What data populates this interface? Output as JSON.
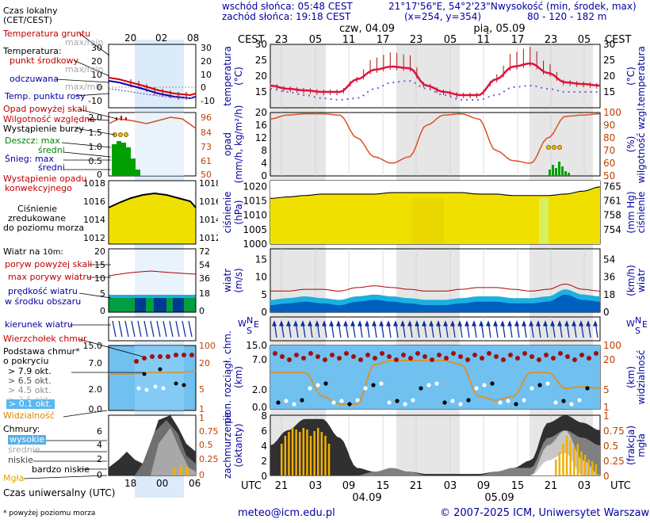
{
  "header": {
    "sunrise": "wschód słońca: 05:48 CEST",
    "sunset": "zachód słońca: 19:18 CEST",
    "coords": "21°17'56\"E, 54°2'23\"N",
    "grid": "(x=254, y=354)",
    "elevation_label": "wysokość (min, środek, max)",
    "elevation_values": "80 - 120 - 182 m"
  },
  "left": {
    "local_time": "Czas lokalny",
    "local_time_zone": "(CET/CEST)",
    "local_ticks": [
      "20",
      "02",
      "08"
    ],
    "utc_ticks": [
      "18",
      "00",
      "06"
    ],
    "utc_label": "Czas uniwersalny (UTC)",
    "footnote": "* powyżej poziomu morza",
    "temp": {
      "ground": "Temperatura gruntu",
      "ground_sub": "max/min",
      "title": "Temperatura:",
      "mid": "punkt środkowy",
      "mid_sub": "max/min",
      "felt": "odczuwana",
      "felt_sub": "max/min",
      "dew": "Temp. punktu rosy",
      "left_ticks": [
        "30",
        "20",
        "10",
        "0",
        "-10"
      ],
      "right_ticks": [
        "30",
        "20",
        "10",
        "0",
        "-10"
      ]
    },
    "precip": {
      "heavy": "Opad powyżej skali",
      "humidity": "Wilgotność względna",
      "storm": "Wystąpienie burzy",
      "rain_max": "Deszcz: max",
      "rain_mid": "średni",
      "snow_max": "Śnieg: max",
      "snow_mid": "średni",
      "conv": "Wystąpienie opadu",
      "conv2": "konwekcyjnego",
      "left_ticks": [
        "2.0",
        "1.5",
        "1.0",
        "0.5",
        "0"
      ],
      "right_ticks": [
        "96",
        "84",
        "73",
        "61",
        "50"
      ]
    },
    "pressure": {
      "l1": "Ciśnienie",
      "l2": "zredukowane",
      "l3": "do poziomu morza",
      "left_ticks": [
        "1018",
        "1016",
        "1014",
        "1012"
      ],
      "right_ticks": [
        "1018",
        "1016",
        "1014",
        "1012"
      ]
    },
    "wind": {
      "title": "Wiatr na",
      "height": "10m:",
      "gust_over": "poryw powyżej skali",
      "gust": "max porywy wiatru",
      "speed": "prędkość wiatru",
      "speed2": "w środku obszaru",
      "left_ticks": [
        "20",
        "15",
        "10",
        "5",
        "0"
      ],
      "right_ticks": [
        "72",
        "54",
        "36",
        "18",
        "0"
      ]
    },
    "direction": "kierunek wiatru",
    "cloudbase": {
      "top": "Wierzchołek chmur",
      "base": "Podstawa chmur*",
      "base2": "o pokryciu",
      "okt": [
        "> 7.9 okt.",
        "> 6.5 okt.",
        "> 4.5 okt.",
        "> 2.5 okt.",
        "> 0.1 okt."
      ],
      "vis": "Widzialność",
      "left_ticks": [
        "15.0",
        "7.0",
        "2.0",
        "0.0"
      ],
      "right_ticks": [
        "100",
        "20",
        "5",
        "1"
      ]
    },
    "clouds": {
      "title": "Chmury:",
      "high": "wysokie",
      "mid": "średnie",
      "low": "niskie",
      "vlow": "bardzo niskie",
      "fog": "Mgła",
      "left_ticks": [
        "8",
        "6",
        "4",
        "2",
        "0"
      ],
      "right_ticks": [
        "1",
        "0.75",
        "0.5",
        "0.25",
        "0"
      ]
    }
  },
  "main": {
    "cest": "CEST",
    "utc": "UTC",
    "top_hours": [
      "23",
      "05",
      "11",
      "17",
      "23",
      "05",
      "11",
      "17",
      "23",
      "05"
    ],
    "bottom_hours": [
      "21",
      "03",
      "09",
      "15",
      "21",
      "03",
      "09",
      "15",
      "21",
      "03"
    ],
    "top_days": [
      "czw, 04.09",
      "pią, 05.09"
    ],
    "bottom_days": [
      "04.09",
      "05.09"
    ],
    "temp": {
      "left_label": "temperatura",
      "left_unit": "(°C)",
      "right_unit": "(°C)",
      "right_label": "temperatura",
      "ticks": [
        "30",
        "25",
        "20",
        "15"
      ]
    },
    "precip": {
      "left_label": "opad",
      "left_unit": "(mm/h, kg/m²/h)",
      "right_unit": "(%)",
      "right_label": "wilgotność wzgl.",
      "left_ticks": [
        "20",
        "16",
        "12",
        "8",
        "4",
        "0"
      ],
      "right_ticks": [
        "100",
        "90",
        "80",
        "70",
        "60",
        "50"
      ]
    },
    "pressure": {
      "left_label": "ciśnienie",
      "left_unit": "(hPa)",
      "right_unit": "(mm Hg)",
      "right_label": "ciśnienie",
      "left_ticks": [
        "1020",
        "1015",
        "1010",
        "1005",
        "1000"
      ],
      "right_ticks": [
        "765",
        "761",
        "758",
        "754"
      ]
    },
    "wind": {
      "left_label": "wiatr",
      "left_unit": "(m/s)",
      "right_unit": "(km/h)",
      "right_label": "wiatr",
      "left_ticks": [
        "15",
        "10",
        "5",
        "0"
      ],
      "right_ticks": [
        "54",
        "36",
        "18",
        "0"
      ]
    },
    "cloud": {
      "left_label": "pion. rozciągł. chm.",
      "left_unit": "(km)",
      "right_unit": "(km)",
      "right_label": "widzialność",
      "left_ticks": [
        "15.0",
        "7.0",
        "2.0",
        "0.0"
      ],
      "right_ticks": [
        "100",
        "20",
        "5",
        "1"
      ]
    },
    "cover": {
      "left_label": "zachmurzenie",
      "left_unit": "(oktanty)",
      "right_unit": "(frakcja)",
      "right_label": "mgła",
      "left_ticks": [
        "8",
        "6",
        "4",
        "2",
        "0"
      ],
      "right_ticks": [
        "1",
        "0.75",
        "0.5",
        "0.25",
        "0"
      ]
    }
  },
  "footer": {
    "email": "meteo@icm.edu.pl",
    "copyright": "© 2007-2025 ICM, Uniwersytet Warszawski"
  },
  "chart_data": [
    {
      "type": "line",
      "ylabel": "temperatura (°C)",
      "ylim": [
        10,
        30
      ],
      "x": [
        "21",
        "00",
        "03",
        "06",
        "09",
        "12",
        "15",
        "18",
        "21",
        "00",
        "03",
        "06",
        "09",
        "12",
        "15",
        "18",
        "21",
        "00",
        "03",
        "06"
      ],
      "series": [
        {
          "values": [
            17,
            16,
            15.5,
            15,
            15,
            19,
            22,
            23,
            22.5,
            17,
            15,
            14,
            14,
            19,
            23,
            24,
            21,
            18,
            17.5,
            17
          ]
        },
        {
          "values": [
            16,
            15,
            14,
            13,
            12.5,
            13,
            16,
            18,
            18.5,
            16,
            14,
            12.5,
            12.5,
            14,
            16.5,
            17,
            16,
            15,
            15,
            15
          ]
        }
      ]
    },
    {
      "type": "line",
      "ylabel": "wilgotność wzgl. (%)",
      "ylim": [
        50,
        100
      ],
      "x": [
        "21",
        "00",
        "03",
        "06",
        "09",
        "12",
        "15",
        "18",
        "21",
        "00",
        "03",
        "06",
        "09",
        "12",
        "15",
        "18",
        "21",
        "00",
        "03",
        "06"
      ],
      "series": [
        {
          "values": [
            95,
            98,
            99,
            99,
            98,
            80,
            65,
            60,
            65,
            90,
            98,
            99,
            95,
            70,
            62,
            60,
            80,
            97,
            98,
            99
          ]
        }
      ]
    },
    {
      "type": "line",
      "ylabel": "ciśnienie (hPa)",
      "ylim": [
        1000,
        1022
      ],
      "x": [
        "21",
        "00",
        "03",
        "06",
        "09",
        "12",
        "15",
        "18",
        "21",
        "00",
        "03",
        "06",
        "09",
        "12",
        "15",
        "18",
        "21",
        "00",
        "03",
        "06"
      ],
      "series": [
        {
          "values": [
            1016,
            1016.5,
            1017,
            1017.5,
            1017.5,
            1017.5,
            1017.5,
            1018,
            1018,
            1018,
            1018,
            1018,
            1017.5,
            1017.5,
            1017,
            1017,
            1017,
            1017.5,
            1018.5,
            1020
          ]
        }
      ]
    },
    {
      "type": "area",
      "ylabel": "wiatr (m/s)",
      "ylim": [
        0,
        18
      ],
      "x": [
        "21",
        "00",
        "03",
        "06",
        "09",
        "12",
        "15",
        "18",
        "21",
        "00",
        "03",
        "06",
        "09",
        "12",
        "15",
        "18",
        "21",
        "00",
        "03",
        "06"
      ],
      "series": [
        {
          "values": [
            2,
            2.5,
            3,
            2.5,
            2,
            3,
            3.5,
            3,
            2.5,
            2,
            2,
            2.5,
            3,
            3,
            2.5,
            2.5,
            3,
            5,
            3.5,
            3
          ]
        },
        {
          "values": [
            6,
            6,
            6.5,
            6.5,
            6,
            7,
            7.5,
            7,
            6.5,
            6,
            6,
            6.5,
            7,
            7,
            6.5,
            6,
            6.5,
            8,
            6.5,
            6
          ]
        }
      ]
    }
  ]
}
